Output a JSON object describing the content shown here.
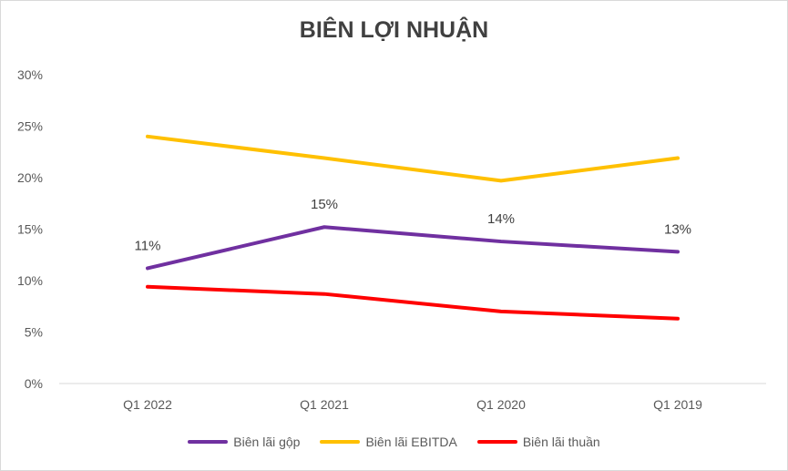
{
  "chart_data": {
    "type": "line",
    "title": "BIÊN LỢI NHUẬN",
    "categories": [
      "Q1 2022",
      "Q1 2021",
      "Q1 2020",
      "Q1 2019"
    ],
    "ylim": [
      0,
      30
    ],
    "yticks": [
      0,
      5,
      10,
      15,
      20,
      25,
      30
    ],
    "ytick_labels": [
      "0%",
      "5%",
      "10%",
      "15%",
      "20%",
      "25%",
      "30%"
    ],
    "grid": false,
    "legend_position": "bottom",
    "series": [
      {
        "name": "Biên lãi gộp",
        "color": "#7030a0",
        "values": [
          11.2,
          15.2,
          13.8,
          12.8
        ],
        "data_labels": [
          "11%",
          "15%",
          "14%",
          "13%"
        ]
      },
      {
        "name": "Biên lãi EBITDA",
        "color": "#ffc000",
        "values": [
          24.0,
          21.9,
          19.7,
          21.9
        ]
      },
      {
        "name": "Biên lãi thuần",
        "color": "#ff0000",
        "values": [
          9.4,
          8.7,
          7.0,
          6.3
        ]
      }
    ]
  }
}
